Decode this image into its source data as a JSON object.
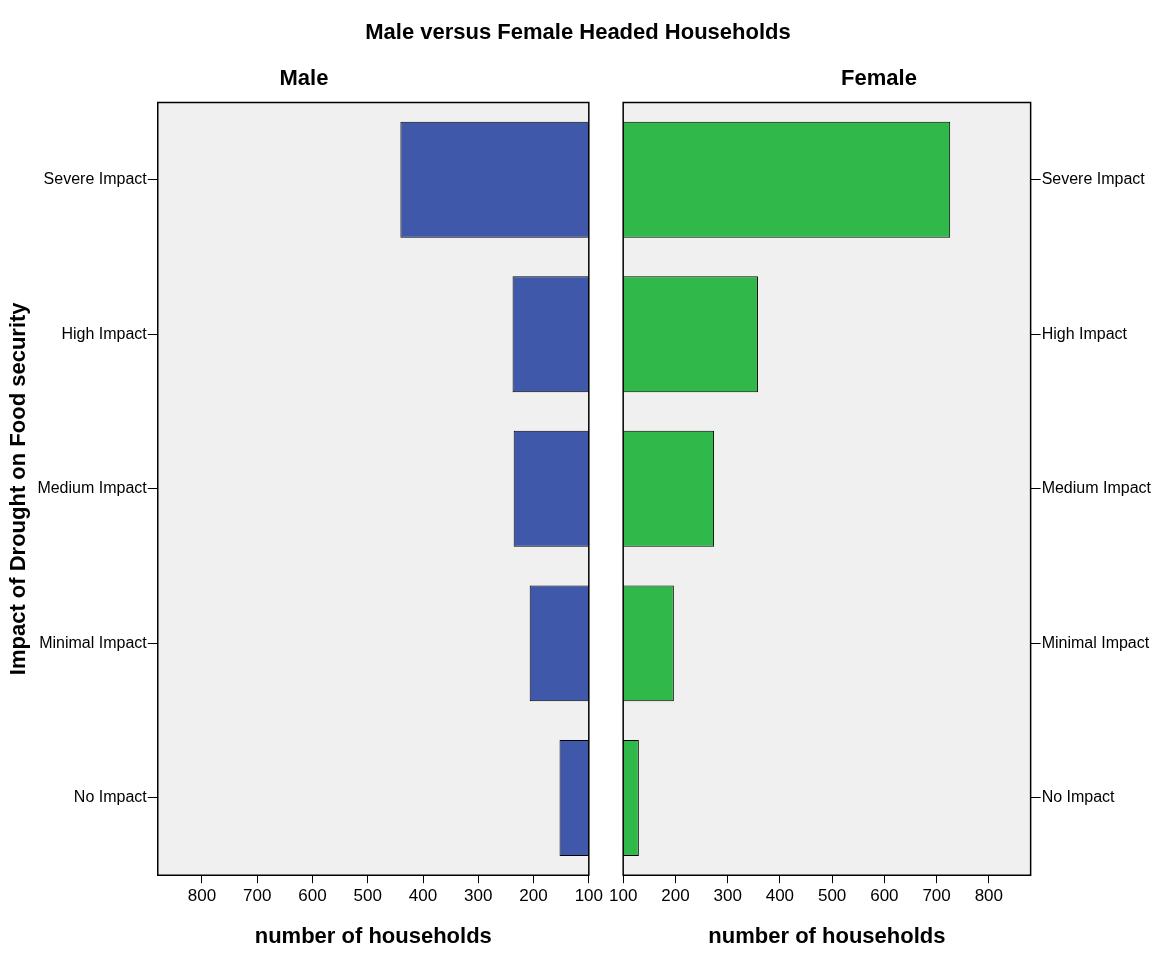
{
  "chart_data": [
    {
      "type": "bar",
      "orientation": "horizontal",
      "title": "Male versus Female Headed Households",
      "ylabel": "Impact of Drought on Food security",
      "xlabel": "number of households",
      "categories": [
        "Severe Impact",
        "High Impact",
        "Medium Impact",
        "Minimal Impact",
        "No Impact"
      ],
      "series": [
        {
          "name": "Male",
          "color": "#3f58a9",
          "values": [
            441,
            238,
            236,
            207,
            153
          ]
        }
      ],
      "xlim": [
        880,
        100
      ],
      "xticks": [
        800,
        700,
        600,
        500,
        400,
        300,
        200,
        100
      ],
      "grid": false,
      "legend": false
    },
    {
      "type": "bar",
      "orientation": "horizontal",
      "xlabel": "number of households",
      "categories": [
        "Severe Impact",
        "High Impact",
        "Medium Impact",
        "Minimal Impact",
        "No Impact"
      ],
      "series": [
        {
          "name": "Female",
          "color": "#30b94a",
          "values": [
            726,
            358,
            274,
            197,
            130
          ]
        }
      ],
      "xlim": [
        100,
        880
      ],
      "xticks": [
        100,
        200,
        300,
        400,
        500,
        600,
        700,
        800
      ],
      "grid": false,
      "legend": false
    }
  ]
}
